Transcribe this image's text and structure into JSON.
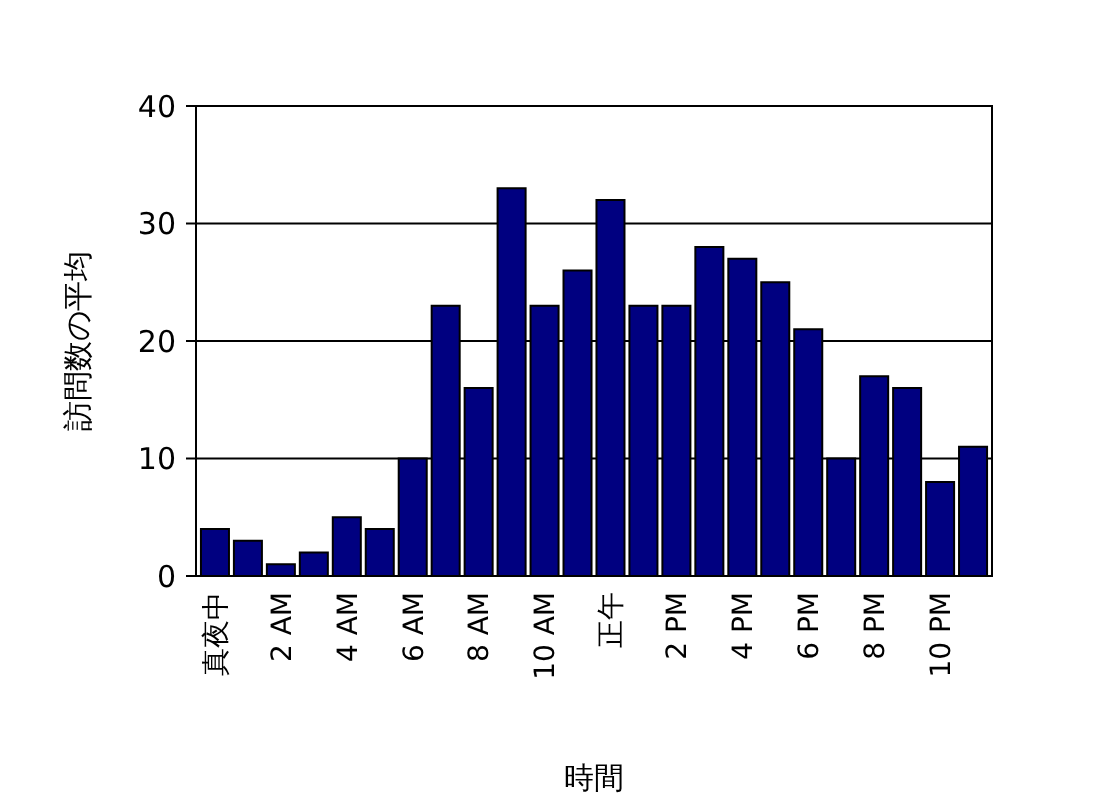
{
  "chart_data": {
    "type": "bar",
    "xlabel": "時間",
    "ylabel": "訪問数の平均",
    "categories": [
      "真夜中",
      null,
      "2 AM",
      null,
      "4 AM",
      null,
      "6 AM",
      null,
      "8 AM",
      null,
      "10 AM",
      null,
      "正午",
      null,
      "2 PM",
      null,
      "4 PM",
      null,
      "6 PM",
      null,
      "8 PM",
      null,
      "10 PM",
      null
    ],
    "values": [
      4,
      3,
      1,
      2,
      5,
      4,
      10,
      23,
      16,
      33,
      23,
      26,
      32,
      23,
      23,
      28,
      27,
      25,
      21,
      10,
      17,
      16,
      8,
      11
    ],
    "color": "#000080",
    "ylim": [
      0,
      40
    ],
    "yticks": [
      0,
      10,
      20,
      30,
      40
    ],
    "grid": "y"
  }
}
